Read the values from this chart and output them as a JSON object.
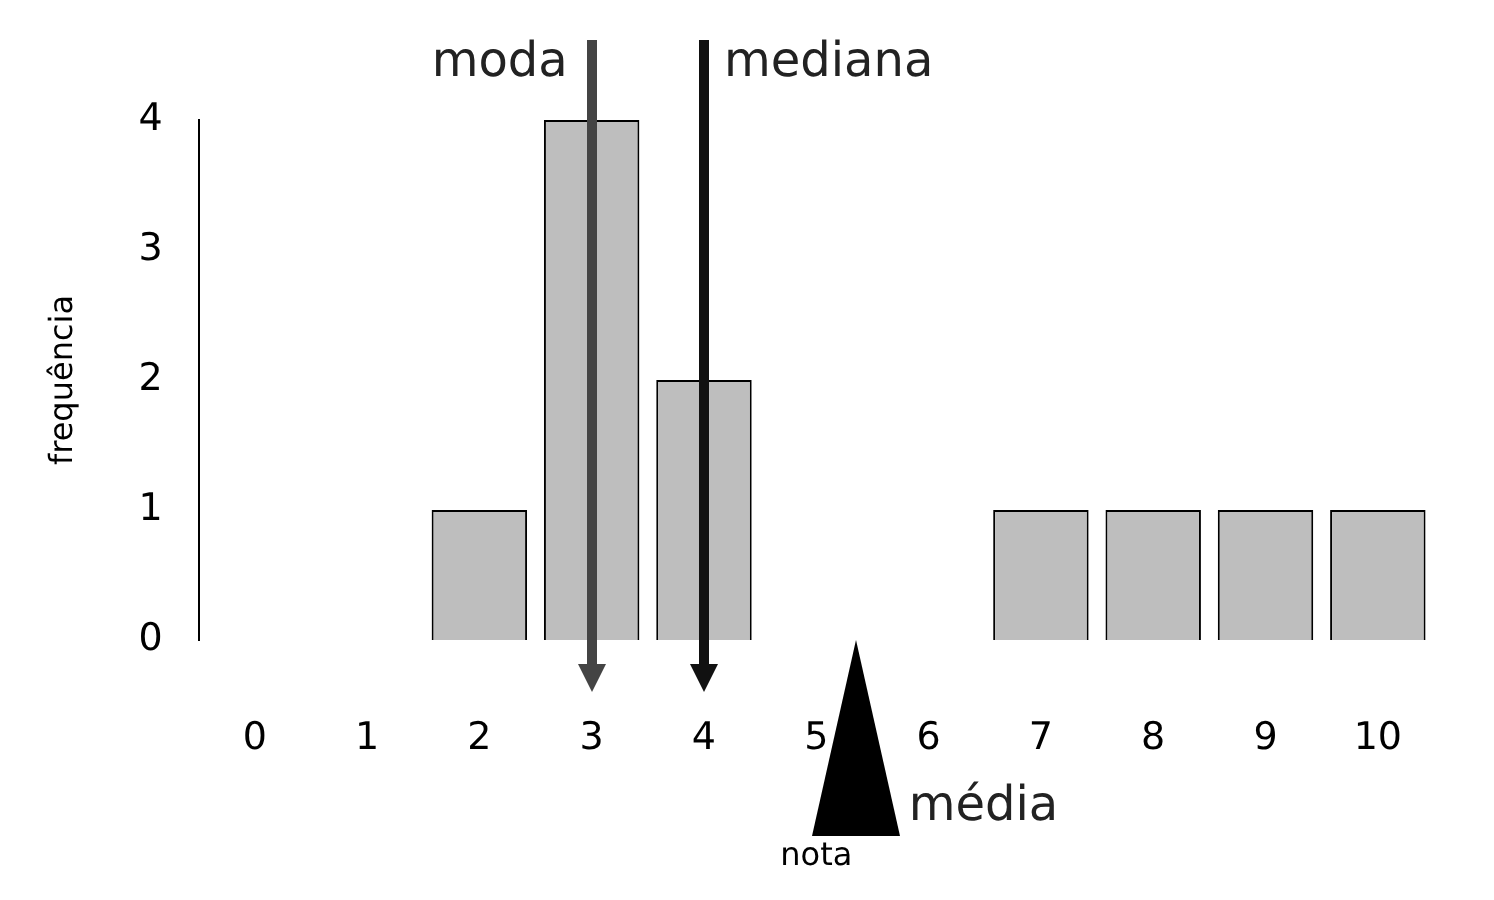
{
  "chart_data": {
    "type": "bar",
    "xlabel": "nota",
    "ylabel": "frequência",
    "categories": [
      "0",
      "1",
      "2",
      "3",
      "4",
      "5",
      "6",
      "7",
      "8",
      "9",
      "10"
    ],
    "values": [
      0,
      0,
      1,
      4,
      2,
      0,
      0,
      1,
      1,
      1,
      1
    ],
    "color": "#bebebe",
    "ylim": [
      0,
      4
    ],
    "yticks": [
      0,
      1,
      2,
      3,
      4
    ],
    "grid": false,
    "legend": false,
    "ref_lines": [
      {
        "axis": "x",
        "value": "3",
        "label": "moda",
        "color": "#444444"
      },
      {
        "axis": "x",
        "value": "4",
        "label": "mediana",
        "color": "#111111"
      }
    ],
    "annotations": [
      "média"
    ]
  }
}
